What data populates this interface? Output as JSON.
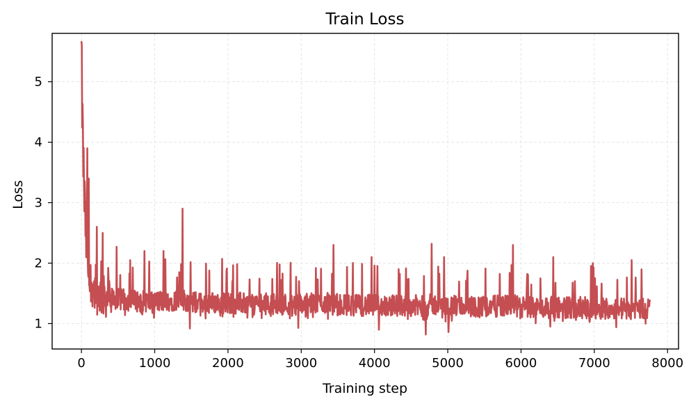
{
  "chart_data": {
    "type": "line",
    "title": "Train Loss",
    "xlabel": "Training step",
    "ylabel": "Loss",
    "xlim": [
      -400,
      8150
    ],
    "ylim": [
      0.58,
      5.8
    ],
    "xticks": [
      0,
      1000,
      2000,
      3000,
      4000,
      5000,
      6000,
      7000,
      8000
    ],
    "xtick_labels": [
      "0",
      "1000",
      "2000",
      "3000",
      "4000",
      "5000",
      "6000",
      "7000",
      "8000"
    ],
    "yticks": [
      1,
      2,
      3,
      4,
      5
    ],
    "ytick_labels": [
      "1",
      "2",
      "3",
      "4",
      "5"
    ],
    "grid": true,
    "legend": false,
    "line_color": "#c44e52",
    "series": [
      {
        "x": [
          0,
          10,
          20,
          30,
          40,
          50,
          60,
          70,
          80,
          90,
          100,
          120,
          140,
          160,
          180,
          200,
          250,
          300,
          400,
          500,
          700,
          1000,
          1380,
          1500,
          2000,
          2500,
          3000,
          3440,
          3500,
          4000,
          4500,
          4700,
          4780,
          5000,
          5500,
          5890,
          6000,
          6500,
          7000,
          7500,
          7760
        ],
        "y": [
          5.5,
          4.6,
          3.95,
          3.5,
          3.1,
          2.8,
          2.5,
          2.3,
          2.1,
          1.95,
          1.85,
          1.75,
          1.65,
          1.6,
          1.55,
          1.5,
          1.48,
          1.45,
          1.42,
          1.4,
          1.38,
          1.36,
          1.4,
          1.35,
          1.34,
          1.33,
          1.32,
          1.35,
          1.31,
          1.3,
          1.3,
          1.28,
          1.32,
          1.29,
          1.28,
          1.3,
          1.27,
          1.27,
          1.26,
          1.25,
          1.25
        ],
        "spikes": [
          [
            80,
            3.9
          ],
          [
            100,
            3.4
          ],
          [
            210,
            2.6
          ],
          [
            290,
            2.5
          ],
          [
            480,
            2.27
          ],
          [
            860,
            2.2
          ],
          [
            1120,
            2.2
          ],
          [
            1380,
            2.9
          ],
          [
            1920,
            2.07
          ],
          [
            3440,
            2.3
          ],
          [
            3960,
            2.1
          ],
          [
            4780,
            2.32
          ],
          [
            4950,
            2.1
          ],
          [
            5890,
            2.3
          ],
          [
            6440,
            2.1
          ],
          [
            6980,
            2.0
          ],
          [
            7510,
            2.05
          ]
        ],
        "dips": [
          [
            1480,
            0.92
          ],
          [
            2960,
            0.93
          ],
          [
            4060,
            0.9
          ],
          [
            4700,
            0.82
          ],
          [
            5010,
            0.86
          ],
          [
            6400,
            0.95
          ],
          [
            7300,
            0.94
          ],
          [
            7700,
            1.0
          ]
        ]
      }
    ]
  }
}
